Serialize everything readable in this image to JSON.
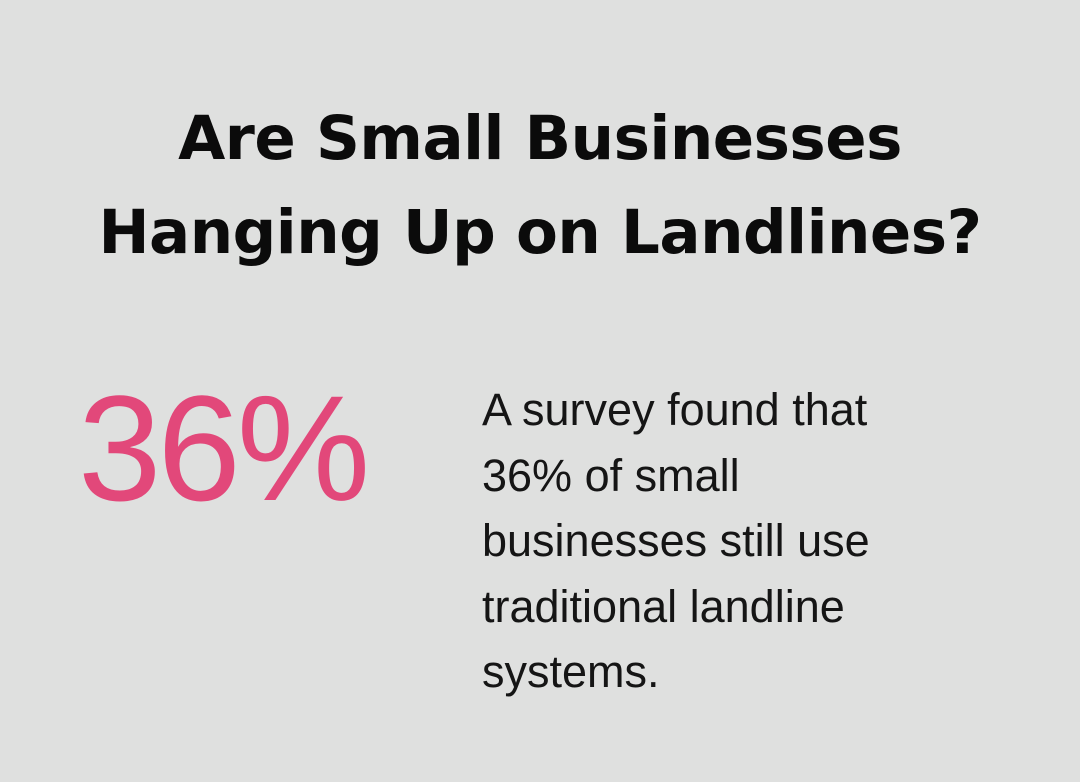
{
  "colors": {
    "background": "#dfe0df",
    "text": "#111111",
    "accent": "#e2487a"
  },
  "infographic": {
    "title_lines": [
      "Are Small Businesses",
      "Hanging Up on Landlines?"
    ],
    "stat": {
      "value": "36%"
    },
    "description_lines": [
      "A survey found that",
      "36% of small",
      "businesses still use",
      "traditional landline",
      "systems."
    ]
  }
}
